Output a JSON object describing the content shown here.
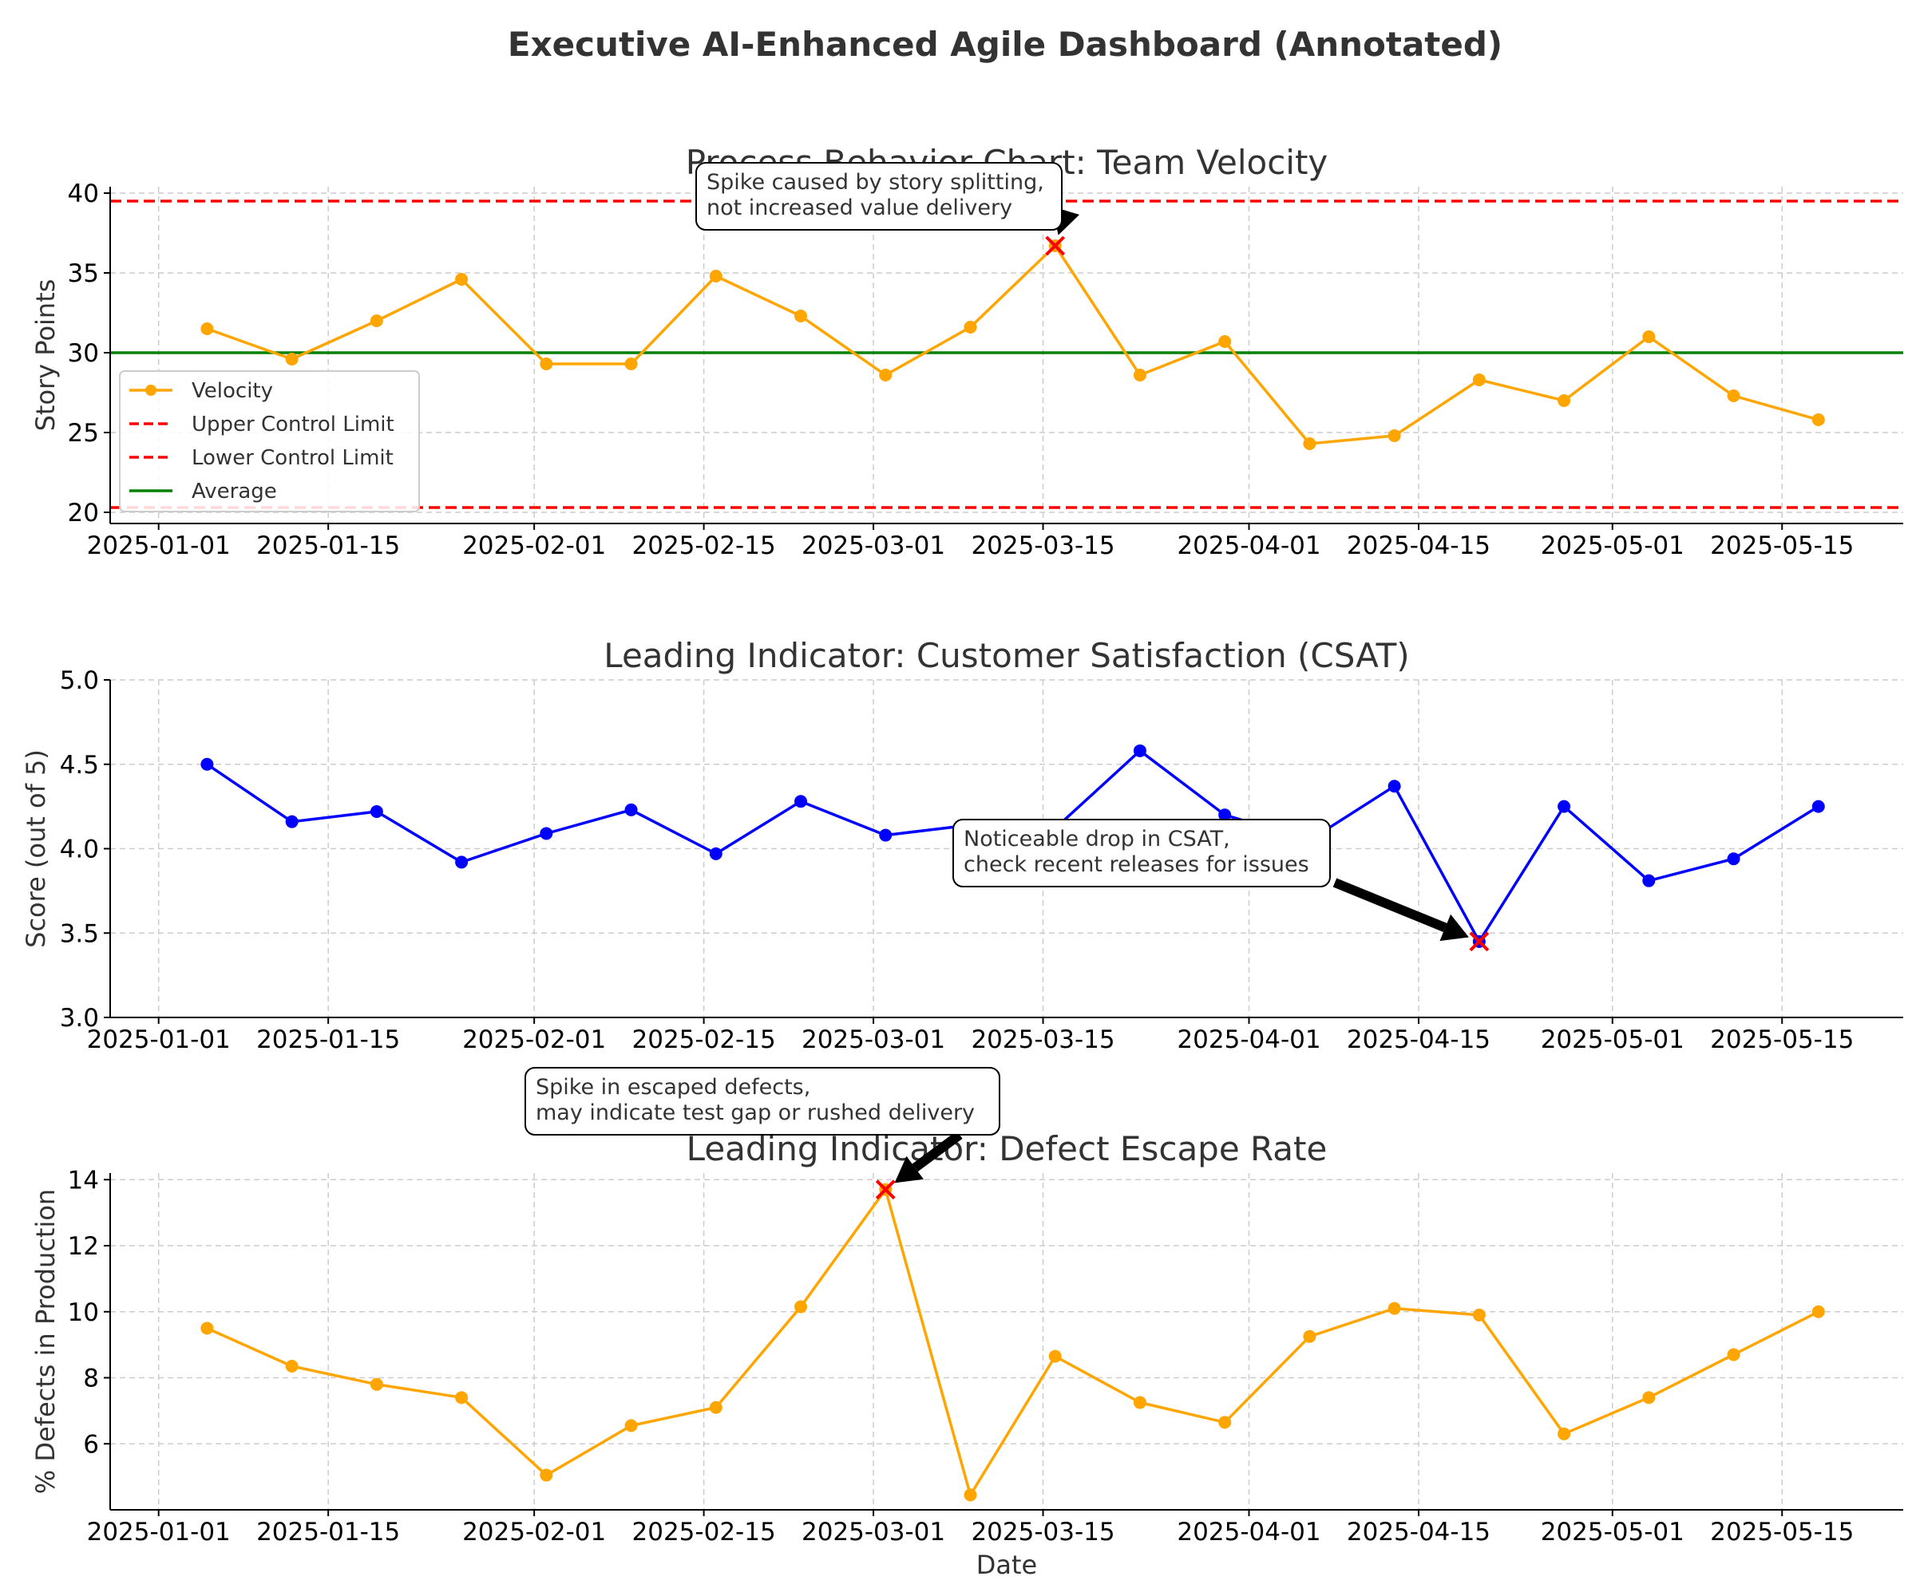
{
  "suptitle": "Executive AI-Enhanced Agile Dashboard (Annotated)",
  "dates": [
    "2025-01-05",
    "2025-01-12",
    "2025-01-19",
    "2025-01-26",
    "2025-02-02",
    "2025-02-09",
    "2025-02-16",
    "2025-02-23",
    "2025-03-02",
    "2025-03-09",
    "2025-03-16",
    "2025-03-23",
    "2025-03-30",
    "2025-04-06",
    "2025-04-13",
    "2025-04-20",
    "2025-04-27",
    "2025-05-04",
    "2025-05-11",
    "2025-05-18"
  ],
  "xticks": [
    "2025-01-01",
    "2025-01-15",
    "2025-02-01",
    "2025-02-15",
    "2025-03-01",
    "2025-03-15",
    "2025-04-01",
    "2025-04-15",
    "2025-05-01",
    "2025-05-15"
  ],
  "xlim": [
    "2024-12-28",
    "2025-05-25"
  ],
  "xlabel": "Date",
  "colors": {
    "velocity": "#FFA500",
    "control": "#FF0000",
    "average": "#008000",
    "csat": "#0000FF",
    "defects": "#FFA500",
    "grid": "#CCCCCC",
    "text": "#333333"
  },
  "chart_data": [
    {
      "type": "line",
      "title": "Process Behavior Chart: Team Velocity",
      "ylabel": "Story Points",
      "ylim": [
        19.3,
        40.4
      ],
      "yticks": [
        20,
        25,
        30,
        35,
        40
      ],
      "grid": true,
      "legend_position": "lower-left",
      "series": [
        {
          "name": "Velocity",
          "values": [
            31.5,
            29.6,
            32.0,
            34.6,
            29.3,
            29.3,
            34.8,
            32.3,
            28.6,
            31.6,
            36.7,
            28.6,
            30.7,
            24.3,
            24.8,
            28.3,
            27.0,
            31.0,
            27.3,
            25.8
          ]
        }
      ],
      "reference_lines": [
        {
          "name": "Upper Control Limit",
          "y": 39.5,
          "style": "dashed"
        },
        {
          "name": "Lower Control Limit",
          "y": 20.3,
          "style": "dashed"
        },
        {
          "name": "Average",
          "y": 30.0,
          "style": "solid"
        }
      ],
      "annotation": {
        "index": 10,
        "text_lines": [
          "Spike caused by story splitting,",
          "not increased value delivery"
        ]
      }
    },
    {
      "type": "line",
      "title": "Leading Indicator: Customer Satisfaction (CSAT)",
      "ylabel": "Score (out of 5)",
      "ylim": [
        3.0,
        5.0
      ],
      "yticks": [
        "3.0",
        "3.5",
        "4.0",
        "4.5",
        "5.0"
      ],
      "grid": true,
      "series": [
        {
          "name": "",
          "values": [
            4.5,
            4.16,
            4.22,
            3.92,
            4.09,
            4.23,
            3.97,
            4.28,
            4.08,
            4.14,
            4.12,
            4.58,
            4.2,
            4.05,
            4.37,
            3.45,
            4.25,
            3.81,
            3.94,
            4.25
          ]
        }
      ],
      "annotation": {
        "index": 15,
        "text_lines": [
          "Noticeable drop in CSAT,",
          "check recent releases for issues"
        ]
      }
    },
    {
      "type": "line",
      "title": "Leading Indicator: Defect Escape Rate",
      "ylabel": "% Defects in Production",
      "ylim": [
        4.0,
        14.2
      ],
      "yticks": [
        6,
        8,
        10,
        12,
        14
      ],
      "grid": true,
      "series": [
        {
          "name": "",
          "values": [
            9.5,
            8.35,
            7.8,
            7.4,
            5.05,
            6.55,
            7.1,
            10.15,
            13.7,
            4.45,
            8.65,
            7.25,
            6.65,
            9.25,
            10.1,
            9.9,
            6.3,
            7.4,
            8.7,
            10.0
          ]
        }
      ],
      "annotation": {
        "index": 8,
        "text_lines": [
          "Spike in escaped defects,",
          "may indicate test gap or rushed delivery"
        ]
      }
    }
  ]
}
